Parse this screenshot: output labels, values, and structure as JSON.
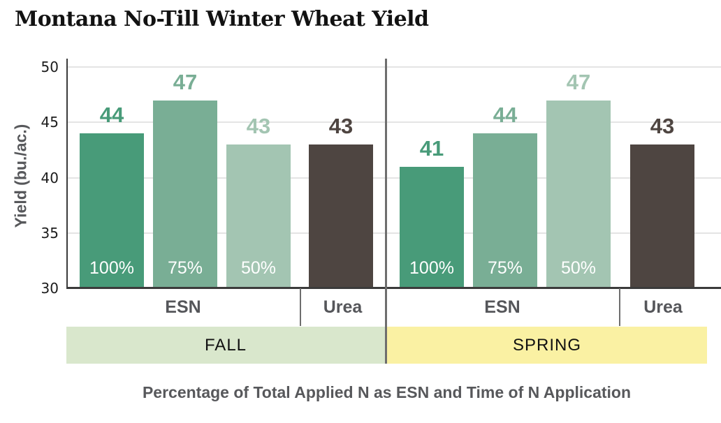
{
  "chart_data": {
    "type": "bar",
    "title": "Montana No-Till Winter Wheat Yield",
    "ylabel": "Yield (bu./ac.)",
    "xlabel": "Percentage of Total Applied N as ESN and Time of N Application",
    "ylim": [
      30,
      50
    ],
    "yticks": [
      30,
      35,
      40,
      45,
      50
    ],
    "grid": true,
    "legend_position": "none",
    "colors": {
      "esn_100": "#489b79",
      "esn_75": "#79ae95",
      "esn_50": "#a3c5b2",
      "urea": "#4e4541",
      "fall_band": "#d9e7cc",
      "spring_band": "#faf1a3",
      "axis": "#3b3b3b",
      "divider": "#6e6e6e",
      "gridline": "#e4e4e4",
      "gray_text": "#57585b"
    },
    "groups": [
      {
        "name": "FALL",
        "band_color": "#d9e7cc",
        "sections": [
          "ESN",
          "Urea"
        ],
        "bars": [
          {
            "section": "ESN",
            "pct": "100%",
            "value": 44,
            "color": "#489b79"
          },
          {
            "section": "ESN",
            "pct": "75%",
            "value": 47,
            "color": "#79ae95"
          },
          {
            "section": "ESN",
            "pct": "50%",
            "value": 43,
            "color": "#a3c5b2"
          },
          {
            "section": "Urea",
            "pct": "",
            "value": 43,
            "color": "#4e4541"
          }
        ]
      },
      {
        "name": "SPRING",
        "band_color": "#faf1a3",
        "sections": [
          "ESN",
          "Urea"
        ],
        "bars": [
          {
            "section": "ESN",
            "pct": "100%",
            "value": 41,
            "color": "#489b79"
          },
          {
            "section": "ESN",
            "pct": "75%",
            "value": 44,
            "color": "#79ae95"
          },
          {
            "section": "ESN",
            "pct": "50%",
            "value": 47,
            "color": "#a3c5b2"
          },
          {
            "section": "Urea",
            "pct": "",
            "value": 43,
            "color": "#4e4541"
          }
        ]
      }
    ]
  }
}
